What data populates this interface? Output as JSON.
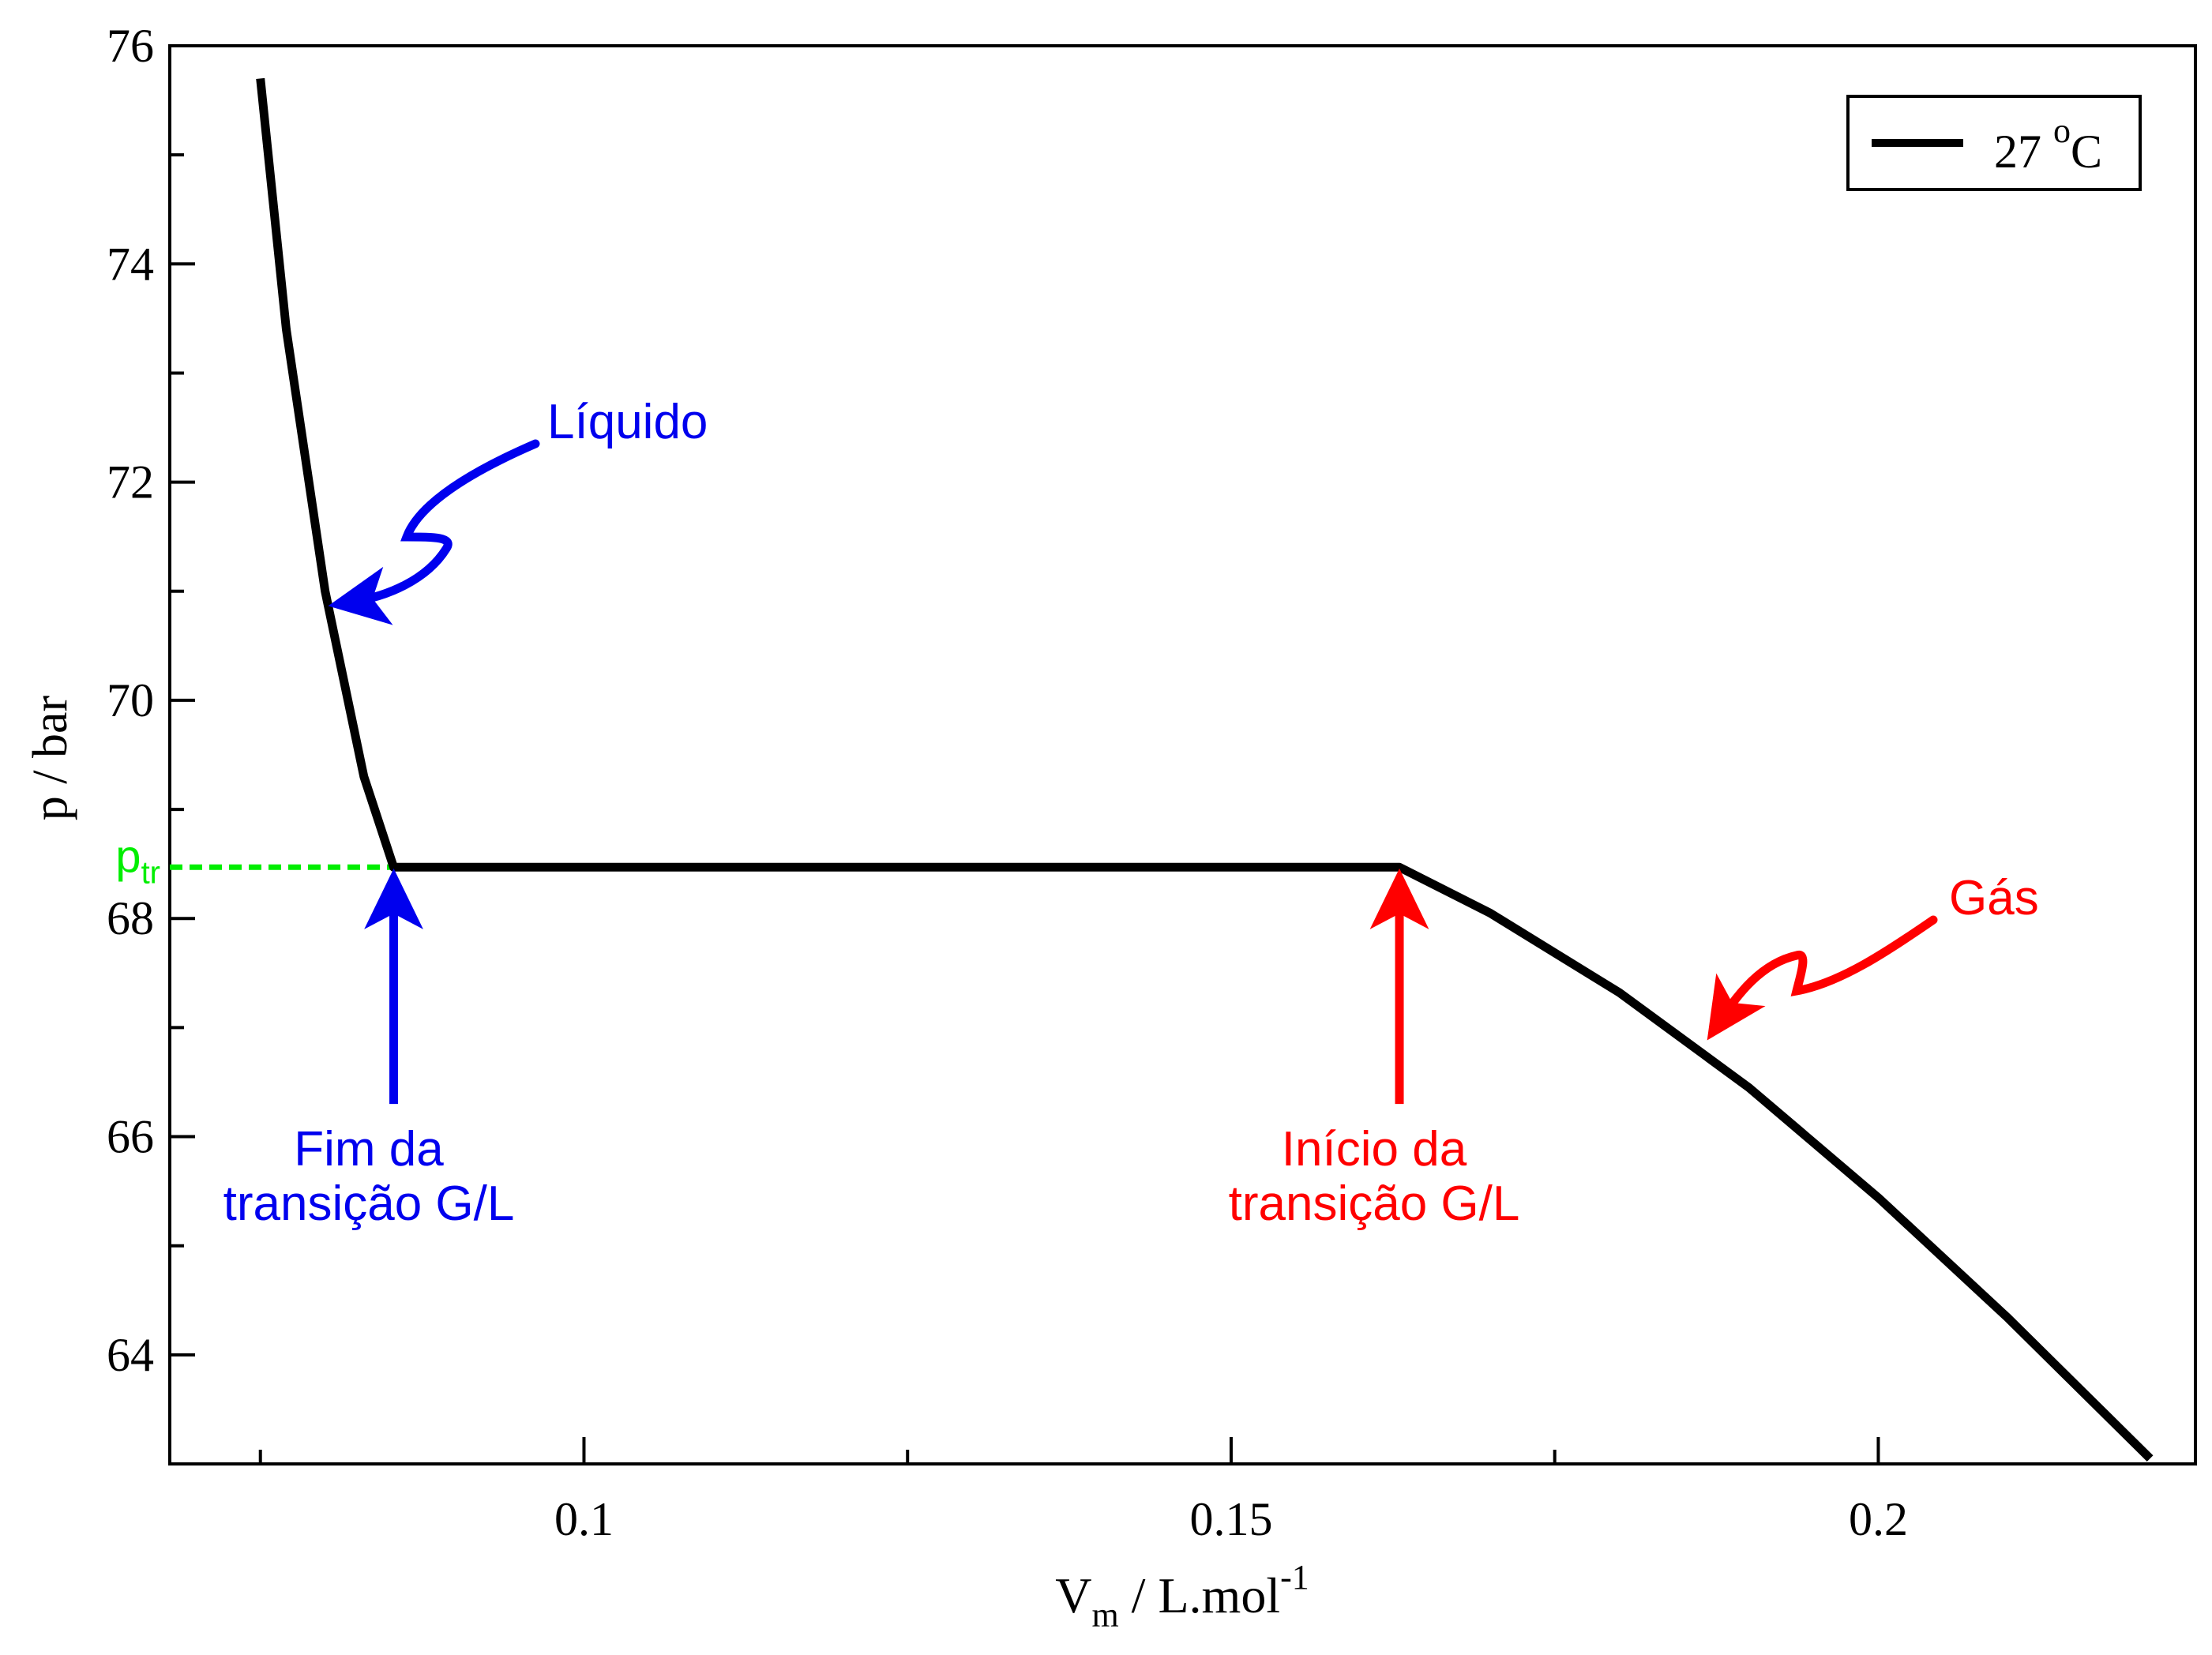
{
  "chart_data": {
    "type": "line",
    "title": "",
    "xlabel": {
      "main": "V",
      "sub": "m",
      "mid": " / L.mol",
      "sup": "-1"
    },
    "ylabel": "p / bar",
    "xlim": [
      0.068,
      0.2245
    ],
    "ylim": [
      63.0,
      76.0
    ],
    "x_ticks": [
      0.1,
      0.15,
      0.2
    ],
    "x_tick_labels": [
      "0.1",
      "0.15",
      "0.2"
    ],
    "x_minor_ticks": [
      0.075,
      0.125,
      0.175
    ],
    "y_ticks": [
      64,
      66,
      68,
      70,
      72,
      74,
      76
    ],
    "y_tick_labels": [
      "64",
      "66",
      "68",
      "70",
      "72",
      "74",
      "76"
    ],
    "y_minor_ticks": [
      65,
      67,
      69,
      71,
      73,
      75
    ],
    "grid": false,
    "legend": {
      "position": "top-right",
      "entry": {
        "value": "27 ",
        "sup": "o",
        "unit": "C"
      }
    },
    "series": [
      {
        "name": "27 oC",
        "color": "#000000",
        "x": [
          0.075,
          0.077,
          0.08,
          0.083,
          0.0853,
          0.1,
          0.13,
          0.163,
          0.17,
          0.18,
          0.19,
          0.2,
          0.21,
          0.221
        ],
        "y": [
          75.7,
          73.4,
          71.0,
          69.3,
          68.47,
          68.47,
          68.47,
          68.47,
          68.05,
          67.32,
          66.45,
          65.44,
          64.34,
          63.05
        ]
      }
    ],
    "reference_line": {
      "label_main": "p",
      "label_sub": "tr",
      "y": 68.47,
      "x_end": 0.0853,
      "color": "#00ee00"
    },
    "annotations": [
      {
        "id": "liquido",
        "text": "Líquido",
        "color": "#0000ee"
      },
      {
        "id": "gas",
        "text": "Gás",
        "color": "#ff0000"
      },
      {
        "id": "fim",
        "lines": [
          "Fim da",
          "transição G/L"
        ],
        "color": "#0000ee",
        "arrow_x": 0.0853
      },
      {
        "id": "inicio",
        "lines": [
          "Início da",
          "transição G/L"
        ],
        "color": "#ff0000",
        "arrow_x": 0.163
      }
    ]
  }
}
